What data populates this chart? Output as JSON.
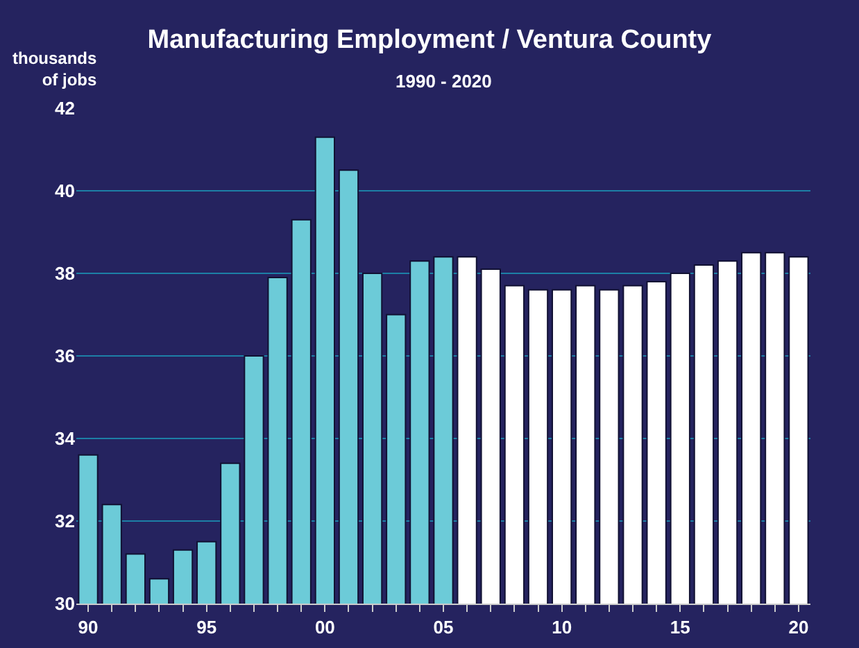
{
  "chart_data": {
    "type": "bar",
    "title": "Manufacturing Employment / Ventura County",
    "subtitle": "1990 - 2020",
    "ylabel": "thousands\nof jobs",
    "x": [
      1990,
      1991,
      1992,
      1993,
      1994,
      1995,
      1996,
      1997,
      1998,
      1999,
      2000,
      2001,
      2002,
      2003,
      2004,
      2005,
      2006,
      2007,
      2008,
      2009,
      2010,
      2011,
      2012,
      2013,
      2014,
      2015,
      2016,
      2017,
      2018,
      2019,
      2020
    ],
    "values": [
      33.6,
      32.4,
      31.2,
      30.6,
      31.3,
      31.5,
      33.4,
      36.0,
      37.9,
      39.3,
      41.3,
      40.5,
      38.0,
      37.0,
      38.3,
      38.4,
      38.4,
      38.1,
      37.7,
      37.6,
      37.6,
      37.7,
      37.6,
      37.7,
      37.8,
      38.0,
      38.2,
      38.3,
      38.5,
      38.5,
      38.4
    ],
    "colors": [
      "#6ccbd8",
      "#6ccbd8",
      "#6ccbd8",
      "#6ccbd8",
      "#6ccbd8",
      "#6ccbd8",
      "#6ccbd8",
      "#6ccbd8",
      "#6ccbd8",
      "#6ccbd8",
      "#6ccbd8",
      "#6ccbd8",
      "#6ccbd8",
      "#6ccbd8",
      "#6ccbd8",
      "#6ccbd8",
      "#ffffff",
      "#ffffff",
      "#ffffff",
      "#ffffff",
      "#ffffff",
      "#ffffff",
      "#ffffff",
      "#ffffff",
      "#ffffff",
      "#ffffff",
      "#ffffff",
      "#ffffff",
      "#ffffff",
      "#ffffff",
      "#ffffff"
    ],
    "xlim": [
      1989.5,
      2020.5
    ],
    "xticks": [
      {
        "value": 1990,
        "label": "90"
      },
      {
        "value": 1991,
        "label": null
      },
      {
        "value": 1992,
        "label": null
      },
      {
        "value": 1993,
        "label": null
      },
      {
        "value": 1994,
        "label": null
      },
      {
        "value": 1995,
        "label": "95"
      },
      {
        "value": 1996,
        "label": null
      },
      {
        "value": 1997,
        "label": null
      },
      {
        "value": 1998,
        "label": null
      },
      {
        "value": 1999,
        "label": null
      },
      {
        "value": 2000,
        "label": "00"
      },
      {
        "value": 2001,
        "label": null
      },
      {
        "value": 2002,
        "label": null
      },
      {
        "value": 2003,
        "label": null
      },
      {
        "value": 2004,
        "label": null
      },
      {
        "value": 2005,
        "label": "05"
      },
      {
        "value": 2006,
        "label": null
      },
      {
        "value": 2007,
        "label": null
      },
      {
        "value": 2008,
        "label": null
      },
      {
        "value": 2009,
        "label": null
      },
      {
        "value": 2010,
        "label": "10"
      },
      {
        "value": 2011,
        "label": null
      },
      {
        "value": 2012,
        "label": null
      },
      {
        "value": 2013,
        "label": null
      },
      {
        "value": 2014,
        "label": null
      },
      {
        "value": 2015,
        "label": "15"
      },
      {
        "value": 2016,
        "label": null
      },
      {
        "value": 2017,
        "label": null
      },
      {
        "value": 2018,
        "label": null
      },
      {
        "value": 2019,
        "label": null
      },
      {
        "value": 2020,
        "label": "20"
      }
    ],
    "ylim": [
      30,
      42
    ],
    "yticks": [
      30,
      32,
      34,
      36,
      38,
      40,
      42
    ],
    "grid": "y"
  }
}
